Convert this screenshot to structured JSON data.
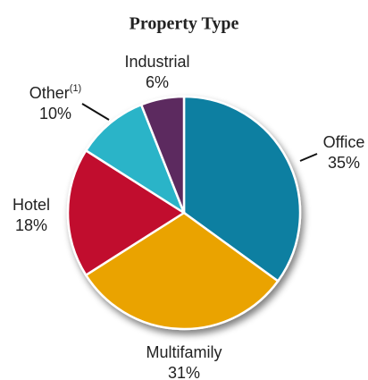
{
  "chart_data": {
    "type": "pie",
    "title": "Property Type",
    "categories": [
      "Office",
      "Multifamily",
      "Hotel",
      "Other",
      "Industrial"
    ],
    "category_notes": [
      null,
      null,
      null,
      "(1)",
      null
    ],
    "values": [
      35,
      31,
      18,
      10,
      6
    ],
    "value_labels": [
      "35%",
      "31%",
      "18%",
      "10%",
      "6%"
    ],
    "colors": [
      "#0e7fa1",
      "#eaa300",
      "#c1112f",
      "#2ab4c8",
      "#5c2a5f"
    ]
  }
}
